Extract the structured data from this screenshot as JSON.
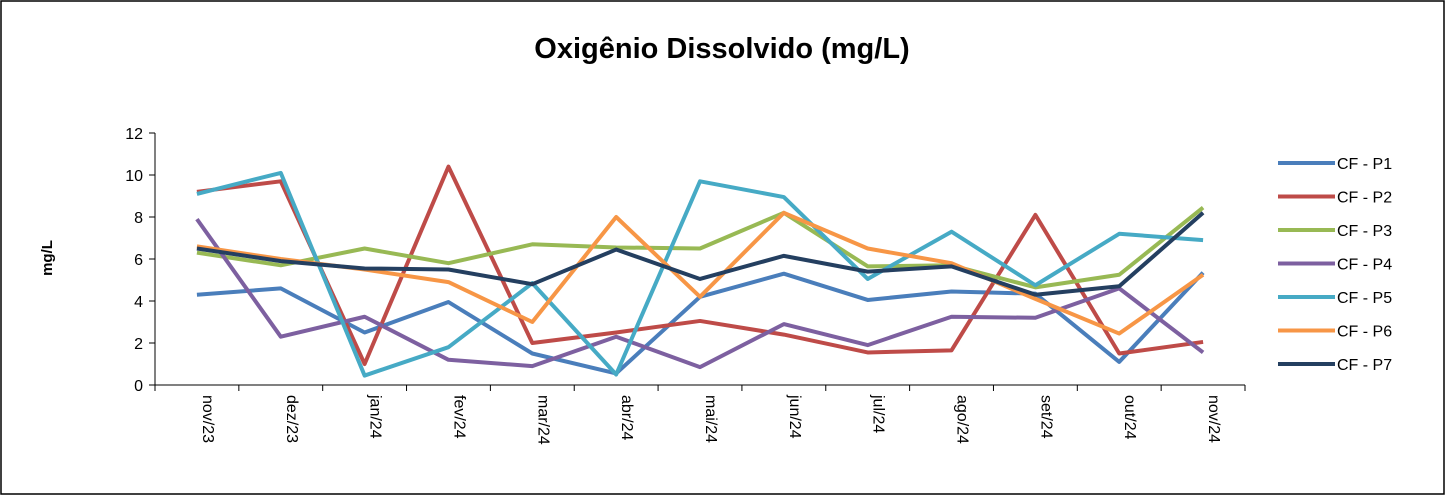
{
  "chart_data": {
    "type": "line",
    "title": "Oxigênio Dissolvido (mg/L)",
    "y_label": "mg/L",
    "categories": [
      "nov/23",
      "dez/23",
      "jan/24",
      "fev/24",
      "mar/24",
      "abr/24",
      "mai/24",
      "jun/24",
      "jul/24",
      "ago/24",
      "set/24",
      "out/24",
      "nov/24"
    ],
    "series": [
      {
        "name": "CF - P1",
        "color": "#4a7ebb",
        "values": [
          4.3,
          4.6,
          2.5,
          3.95,
          1.5,
          0.55,
          4.2,
          5.3,
          4.05,
          4.45,
          4.35,
          1.1,
          5.35
        ]
      },
      {
        "name": "CF - P2",
        "color": "#be4b48",
        "values": [
          9.2,
          9.7,
          1.0,
          10.4,
          2.0,
          2.5,
          3.05,
          2.4,
          1.55,
          1.65,
          8.1,
          1.5,
          2.05
        ]
      },
      {
        "name": "CF - P3",
        "color": "#98b954",
        "values": [
          6.3,
          5.7,
          6.5,
          5.8,
          6.7,
          6.55,
          6.5,
          8.2,
          5.65,
          5.7,
          4.65,
          5.25,
          8.45
        ]
      },
      {
        "name": "CF - P4",
        "color": "#7d60a0",
        "values": [
          7.9,
          2.3,
          3.25,
          1.2,
          0.9,
          2.3,
          0.85,
          2.9,
          1.9,
          3.25,
          3.2,
          4.6,
          1.55
        ]
      },
      {
        "name": "CF - P5",
        "color": "#46aac5",
        "values": [
          9.1,
          10.1,
          0.45,
          1.8,
          4.85,
          0.5,
          9.7,
          8.95,
          5.05,
          7.3,
          4.75,
          7.2,
          6.9
        ]
      },
      {
        "name": "CF - P6",
        "color": "#f79646",
        "values": [
          6.6,
          6.0,
          5.5,
          4.9,
          3.0,
          8.0,
          4.2,
          8.2,
          6.5,
          5.8,
          4.1,
          2.45,
          5.25
        ]
      },
      {
        "name": "CF - P7",
        "color": "#243f60",
        "values": [
          6.5,
          5.9,
          5.55,
          5.5,
          4.8,
          6.45,
          5.05,
          6.15,
          5.4,
          5.65,
          4.3,
          4.7,
          8.2
        ]
      }
    ],
    "ylim": [
      0,
      12
    ],
    "yticks": [
      0,
      2,
      4,
      6,
      8,
      10,
      12
    ],
    "legend": "right"
  }
}
